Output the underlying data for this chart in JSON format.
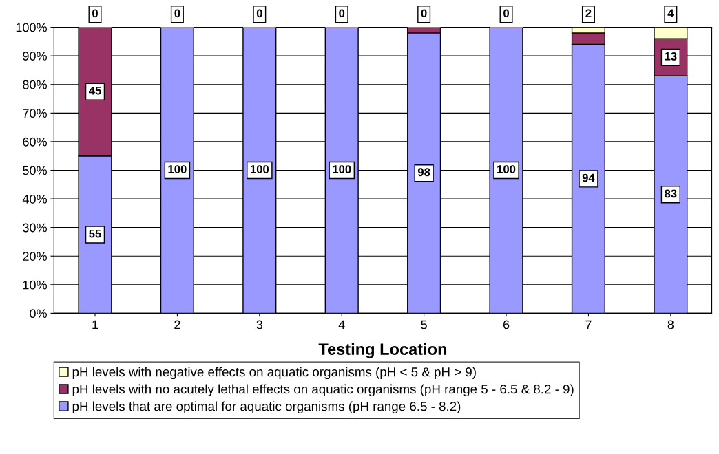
{
  "chart_data": {
    "type": "bar",
    "stacked": true,
    "xlabel": "Testing Location",
    "categories": [
      "1",
      "2",
      "3",
      "4",
      "5",
      "6",
      "7",
      "8"
    ],
    "ylim": [
      0,
      100
    ],
    "yticks": [
      {
        "value": 0,
        "label": "0%"
      },
      {
        "value": 10,
        "label": "10%"
      },
      {
        "value": 20,
        "label": "20%"
      },
      {
        "value": 30,
        "label": "30%"
      },
      {
        "value": 40,
        "label": "40%"
      },
      {
        "value": 50,
        "label": "50%"
      },
      {
        "value": 60,
        "label": "60%"
      },
      {
        "value": 70,
        "label": "70%"
      },
      {
        "value": 80,
        "label": "80%"
      },
      {
        "value": 90,
        "label": "90%"
      },
      {
        "value": 100,
        "label": "100%"
      }
    ],
    "grid": "y",
    "legend": "bottom",
    "series": [
      {
        "name": "pH levels that are optimal for aquatic organisms (pH range 6.5 - 8.2)",
        "color": "#9999ff",
        "values": [
          55,
          100,
          100,
          100,
          98,
          100,
          94,
          83
        ],
        "value_labels": [
          "55",
          "100",
          "100",
          "100",
          "98",
          "100",
          "94",
          "83"
        ]
      },
      {
        "name": "pH levels with no acutely lethal effects on aquatic organisms (pH range 5 - 6.5 & 8.2 - 9)",
        "color": "#993366",
        "values": [
          45,
          0,
          0,
          0,
          2,
          0,
          4,
          13
        ],
        "value_labels": [
          "45",
          null,
          null,
          null,
          null,
          null,
          null,
          "13"
        ]
      },
      {
        "name": "pH levels with negative effects on aquatic organisms (pH < 5 & pH > 9)",
        "color": "#ffffcc",
        "values": [
          0,
          0,
          0,
          0,
          0,
          0,
          2,
          4
        ],
        "value_labels": [
          "0",
          "0",
          "0",
          "0",
          "0",
          "0",
          "2",
          "4"
        ]
      }
    ]
  }
}
